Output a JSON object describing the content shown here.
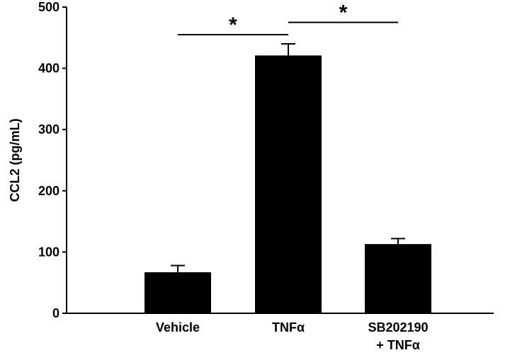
{
  "chart_data": {
    "type": "bar",
    "title": "",
    "xlabel": "",
    "ylabel": "CCL2 (pg/mL)",
    "ylim": [
      0,
      500
    ],
    "yticks": [
      0,
      100,
      200,
      300,
      400,
      500
    ],
    "grid": false,
    "legend": "none",
    "categories": [
      "Vehicle",
      "TNFα",
      "SB202190 + TNFα"
    ],
    "category_lines": [
      [
        "Vehicle"
      ],
      [
        "TNFα"
      ],
      [
        "SB202190",
        "+ TNFα"
      ]
    ],
    "values": [
      67,
      421,
      113
    ],
    "errors": [
      11,
      19,
      9
    ],
    "bar_color": "#000000",
    "significance": [
      {
        "from": 0,
        "to": 1,
        "label": "*",
        "y": 455
      },
      {
        "from": 1,
        "to": 2,
        "label": "*",
        "y": 475
      }
    ]
  }
}
